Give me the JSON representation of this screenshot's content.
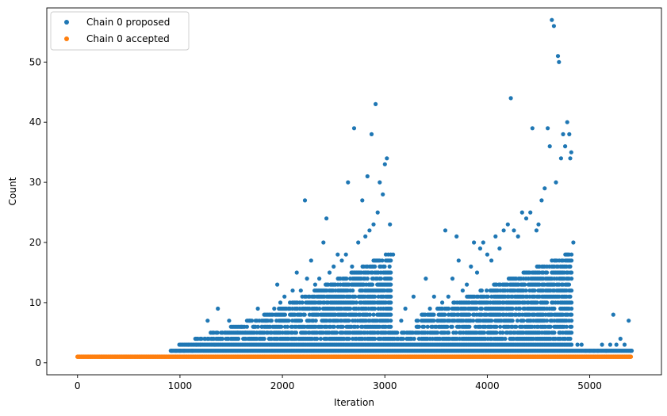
{
  "chart_data": {
    "type": "scatter",
    "xlabel": "Iteration",
    "ylabel": "Count",
    "xlim": [
      -300,
      5700
    ],
    "ylim": [
      -2,
      59
    ],
    "x_ticks": [
      0,
      1000,
      2000,
      3000,
      4000,
      5000
    ],
    "y_ticks": [
      0,
      10,
      20,
      30,
      40,
      50
    ],
    "x_tick_labels": [
      "0",
      "1000",
      "2000",
      "3000",
      "4000",
      "5000"
    ],
    "y_tick_labels": [
      "0",
      "10",
      "20",
      "30",
      "40",
      "50"
    ],
    "legend_position": "upper-left",
    "grid": false,
    "series": [
      {
        "name": "Chain 0 proposed",
        "color": "#1f77b4",
        "points": [
          [
            920,
            2
          ],
          [
            960,
            2
          ],
          [
            1000,
            2
          ],
          [
            1040,
            2
          ],
          [
            1080,
            3
          ],
          [
            1120,
            2
          ],
          [
            1160,
            3
          ],
          [
            1200,
            3
          ],
          [
            1240,
            4
          ],
          [
            1270,
            7
          ],
          [
            1300,
            5
          ],
          [
            1340,
            3
          ],
          [
            1370,
            9
          ],
          [
            1400,
            4
          ],
          [
            1440,
            5
          ],
          [
            1480,
            7
          ],
          [
            1520,
            4
          ],
          [
            1560,
            5
          ],
          [
            1600,
            6
          ],
          [
            1640,
            5
          ],
          [
            1680,
            7
          ],
          [
            1720,
            6
          ],
          [
            1760,
            9
          ],
          [
            1800,
            6
          ],
          [
            1840,
            7
          ],
          [
            1880,
            8
          ],
          [
            1920,
            9
          ],
          [
            1950,
            13
          ],
          [
            1980,
            10
          ],
          [
            2020,
            11
          ],
          [
            2060,
            9
          ],
          [
            2100,
            12
          ],
          [
            2140,
            15
          ],
          [
            2180,
            12
          ],
          [
            2220,
            27
          ],
          [
            2240,
            14
          ],
          [
            2280,
            17
          ],
          [
            2320,
            13
          ],
          [
            2360,
            14
          ],
          [
            2400,
            20
          ],
          [
            2430,
            24
          ],
          [
            2460,
            15
          ],
          [
            2500,
            16
          ],
          [
            2540,
            18
          ],
          [
            2580,
            17
          ],
          [
            2620,
            18
          ],
          [
            2640,
            30
          ],
          [
            2680,
            16
          ],
          [
            2700,
            39
          ],
          [
            2740,
            20
          ],
          [
            2780,
            27
          ],
          [
            2810,
            21
          ],
          [
            2830,
            31
          ],
          [
            2850,
            22
          ],
          [
            2870,
            38
          ],
          [
            2890,
            23
          ],
          [
            2910,
            43
          ],
          [
            2930,
            25
          ],
          [
            2950,
            30
          ],
          [
            2980,
            28
          ],
          [
            3000,
            33
          ],
          [
            3020,
            34
          ],
          [
            3050,
            23
          ],
          [
            3080,
            18
          ],
          [
            3120,
            5
          ],
          [
            3160,
            7
          ],
          [
            3200,
            9
          ],
          [
            3240,
            5
          ],
          [
            3280,
            11
          ],
          [
            3320,
            6
          ],
          [
            3360,
            8
          ],
          [
            3400,
            14
          ],
          [
            3440,
            9
          ],
          [
            3480,
            11
          ],
          [
            3520,
            7
          ],
          [
            3560,
            10
          ],
          [
            3590,
            22
          ],
          [
            3620,
            11
          ],
          [
            3660,
            14
          ],
          [
            3700,
            21
          ],
          [
            3720,
            17
          ],
          [
            3760,
            12
          ],
          [
            3800,
            13
          ],
          [
            3840,
            16
          ],
          [
            3870,
            20
          ],
          [
            3900,
            15
          ],
          [
            3930,
            19
          ],
          [
            3960,
            20
          ],
          [
            4000,
            18
          ],
          [
            4040,
            17
          ],
          [
            4080,
            21
          ],
          [
            4120,
            19
          ],
          [
            4160,
            22
          ],
          [
            4200,
            23
          ],
          [
            4230,
            44
          ],
          [
            4260,
            22
          ],
          [
            4300,
            21
          ],
          [
            4340,
            25
          ],
          [
            4380,
            24
          ],
          [
            4420,
            25
          ],
          [
            4440,
            39
          ],
          [
            4480,
            22
          ],
          [
            4500,
            23
          ],
          [
            4530,
            27
          ],
          [
            4560,
            29
          ],
          [
            4590,
            39
          ],
          [
            4610,
            36
          ],
          [
            4630,
            57
          ],
          [
            4650,
            56
          ],
          [
            4670,
            30
          ],
          [
            4690,
            51
          ],
          [
            4700,
            50
          ],
          [
            4720,
            34
          ],
          [
            4740,
            38
          ],
          [
            4760,
            36
          ],
          [
            4780,
            40
          ],
          [
            4800,
            38
          ],
          [
            4810,
            34
          ],
          [
            4820,
            35
          ],
          [
            4840,
            20
          ],
          [
            4880,
            3
          ],
          [
            4920,
            3
          ],
          [
            4960,
            2
          ],
          [
            5000,
            2
          ],
          [
            5040,
            2
          ],
          [
            5080,
            2
          ],
          [
            5120,
            3
          ],
          [
            5160,
            2
          ],
          [
            5200,
            3
          ],
          [
            5230,
            8
          ],
          [
            5260,
            3
          ],
          [
            5300,
            4
          ],
          [
            5340,
            3
          ],
          [
            5380,
            7
          ],
          [
            5400,
            2
          ]
        ]
      },
      {
        "name": "Chain 0 accepted",
        "color": "#ff7f0e",
        "x_start": 0,
        "x_end": 5410,
        "x_step": 12,
        "value": 1
      }
    ]
  }
}
